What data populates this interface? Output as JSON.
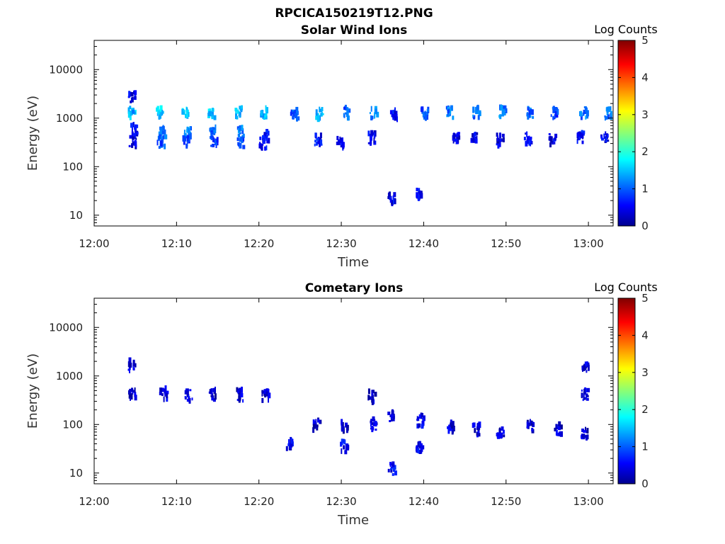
{
  "figure": {
    "title": "RPCICA150219T12.PNG"
  },
  "chart_data": [
    {
      "type": "heatmap",
      "title": "Solar Wind Ions",
      "xlabel": "Time",
      "ylabel": "Energy (eV)",
      "yscale": "log",
      "ylim": [
        6,
        40000
      ],
      "xlim": [
        "12:00",
        "13:03"
      ],
      "xticks": [
        "12:00",
        "12:10",
        "12:20",
        "12:30",
        "12:40",
        "12:50",
        "13:00"
      ],
      "yticks": [
        "10",
        "100",
        "1000",
        "10000"
      ],
      "colorbar": {
        "label": "Log Counts",
        "range": [
          0,
          5
        ],
        "ticks": [
          "0",
          "1",
          "2",
          "3",
          "4",
          "5"
        ],
        "colormap": "jet"
      },
      "clusters": [
        {
          "t": 4.5,
          "e": 1300,
          "v": 1.5
        },
        {
          "t": 4.5,
          "e": 2600,
          "v": 0.5
        },
        {
          "t": 4.8,
          "e": 600,
          "v": 0.6
        },
        {
          "t": 4.6,
          "e": 330,
          "v": 0.5
        },
        {
          "t": 7.9,
          "e": 1300,
          "v": 1.6
        },
        {
          "t": 8.2,
          "e": 500,
          "v": 1.2
        },
        {
          "t": 8.0,
          "e": 320,
          "v": 1.0
        },
        {
          "t": 10.9,
          "e": 1300,
          "v": 1.6
        },
        {
          "t": 11.3,
          "e": 500,
          "v": 1.2
        },
        {
          "t": 11.1,
          "e": 320,
          "v": 1.0
        },
        {
          "t": 14.1,
          "e": 1300,
          "v": 1.6
        },
        {
          "t": 14.3,
          "e": 500,
          "v": 1.0
        },
        {
          "t": 14.5,
          "e": 320,
          "v": 0.9
        },
        {
          "t": 17.4,
          "e": 1300,
          "v": 1.6
        },
        {
          "t": 17.7,
          "e": 500,
          "v": 1.2
        },
        {
          "t": 17.6,
          "e": 320,
          "v": 1.0
        },
        {
          "t": 20.5,
          "e": 1300,
          "v": 1.5
        },
        {
          "t": 20.7,
          "e": 420,
          "v": 0.7
        },
        {
          "t": 20.4,
          "e": 300,
          "v": 0.6
        },
        {
          "t": 24.2,
          "e": 1200,
          "v": 1.0
        },
        {
          "t": 27.2,
          "e": 1200,
          "v": 1.4
        },
        {
          "t": 27.1,
          "e": 360,
          "v": 0.6
        },
        {
          "t": 30.6,
          "e": 1300,
          "v": 1.1
        },
        {
          "t": 29.8,
          "e": 300,
          "v": 0.5
        },
        {
          "t": 33.8,
          "e": 1300,
          "v": 1.2
        },
        {
          "t": 33.6,
          "e": 380,
          "v": 0.5
        },
        {
          "t": 36.3,
          "e": 1200,
          "v": 0.6
        },
        {
          "t": 36.0,
          "e": 22,
          "v": 0.5
        },
        {
          "t": 39.4,
          "e": 26,
          "v": 0.5
        },
        {
          "t": 40.0,
          "e": 1300,
          "v": 1.0
        },
        {
          "t": 43.1,
          "e": 1300,
          "v": 1.2
        },
        {
          "t": 46.3,
          "e": 1300,
          "v": 1.1
        },
        {
          "t": 49.5,
          "e": 1300,
          "v": 1.2
        },
        {
          "t": 52.8,
          "e": 1300,
          "v": 1.1
        },
        {
          "t": 55.8,
          "e": 1300,
          "v": 0.9
        },
        {
          "t": 59.3,
          "e": 1300,
          "v": 1.2
        },
        {
          "t": 62.3,
          "e": 1300,
          "v": 1.2
        },
        {
          "t": 43.8,
          "e": 380,
          "v": 0.5
        },
        {
          "t": 46.0,
          "e": 380,
          "v": 0.5
        },
        {
          "t": 49.2,
          "e": 350,
          "v": 0.5
        },
        {
          "t": 52.5,
          "e": 380,
          "v": 0.5
        },
        {
          "t": 55.5,
          "e": 360,
          "v": 0.5
        },
        {
          "t": 59.0,
          "e": 400,
          "v": 0.6
        },
        {
          "t": 61.8,
          "e": 380,
          "v": 0.5
        }
      ]
    },
    {
      "type": "heatmap",
      "title": "Cometary Ions",
      "xlabel": "Time",
      "ylabel": "Energy (eV)",
      "yscale": "log",
      "ylim": [
        6,
        40000
      ],
      "xlim": [
        "12:00",
        "13:03"
      ],
      "xticks": [
        "12:00",
        "12:10",
        "12:20",
        "12:30",
        "12:40",
        "12:50",
        "13:00"
      ],
      "yticks": [
        "10",
        "100",
        "1000",
        "10000"
      ],
      "colorbar": {
        "label": "Log Counts",
        "range": [
          0,
          5
        ],
        "ticks": [
          "0",
          "1",
          "2",
          "3",
          "4",
          "5"
        ],
        "colormap": "jet"
      },
      "clusters": [
        {
          "t": 4.5,
          "e": 1600,
          "v": 0.4
        },
        {
          "t": 4.5,
          "e": 420,
          "v": 0.4
        },
        {
          "t": 8.3,
          "e": 430,
          "v": 0.5
        },
        {
          "t": 11.4,
          "e": 400,
          "v": 0.5
        },
        {
          "t": 14.3,
          "e": 400,
          "v": 0.4
        },
        {
          "t": 17.6,
          "e": 400,
          "v": 0.4
        },
        {
          "t": 20.7,
          "e": 380,
          "v": 0.4
        },
        {
          "t": 23.7,
          "e": 40,
          "v": 0.5
        },
        {
          "t": 26.9,
          "e": 100,
          "v": 0.4
        },
        {
          "t": 30.2,
          "e": 35,
          "v": 0.6
        },
        {
          "t": 30.3,
          "e": 90,
          "v": 0.4
        },
        {
          "t": 33.6,
          "e": 380,
          "v": 0.4
        },
        {
          "t": 33.8,
          "e": 100,
          "v": 0.4
        },
        {
          "t": 35.9,
          "e": 150,
          "v": 0.5
        },
        {
          "t": 36.0,
          "e": 12,
          "v": 0.6
        },
        {
          "t": 39.5,
          "e": 120,
          "v": 0.5
        },
        {
          "t": 39.3,
          "e": 35,
          "v": 0.6
        },
        {
          "t": 43.2,
          "e": 90,
          "v": 0.4
        },
        {
          "t": 46.2,
          "e": 80,
          "v": 0.4
        },
        {
          "t": 49.2,
          "e": 70,
          "v": 0.4
        },
        {
          "t": 52.8,
          "e": 90,
          "v": 0.4
        },
        {
          "t": 56.2,
          "e": 80,
          "v": 0.4
        },
        {
          "t": 59.4,
          "e": 70,
          "v": 0.4
        },
        {
          "t": 59.5,
          "e": 400,
          "v": 0.4
        },
        {
          "t": 59.5,
          "e": 1600,
          "v": 0.4
        }
      ]
    }
  ]
}
